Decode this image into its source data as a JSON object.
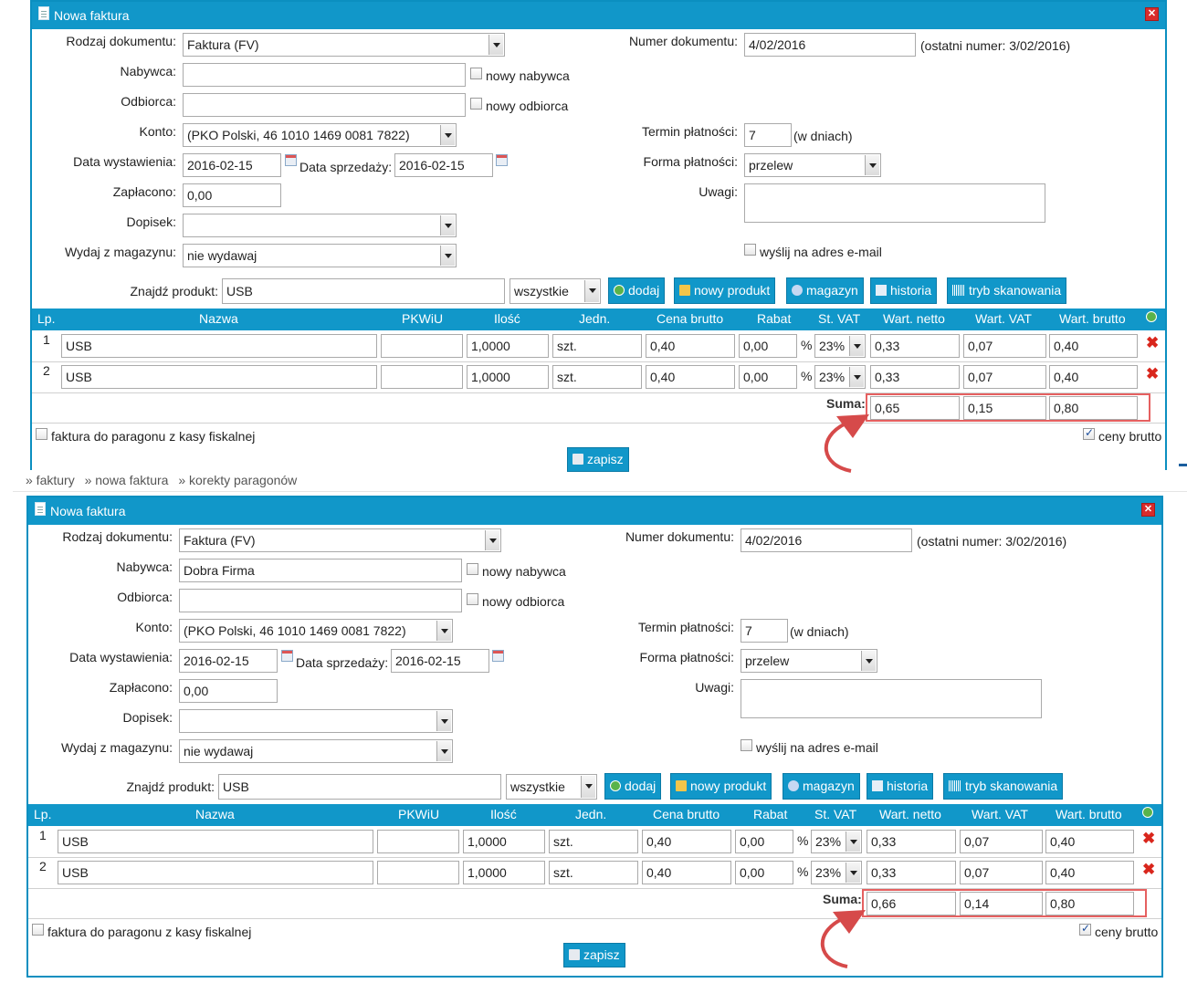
{
  "breadcrumb": [
    "» faktury",
    "» nowa faktura",
    "» korekty paragonów"
  ],
  "windows": [
    {
      "title": "Nowa faktura",
      "labels": {
        "doc_type": "Rodzaj dokumentu:",
        "buyer": "Nabywca:",
        "recipient": "Odbiorca:",
        "account": "Konto:",
        "issue_date": "Data wystawienia:",
        "sale_date": "Data sprzedaży:",
        "paid": "Zapłacono:",
        "note": "Dopisek:",
        "warehouse": "Wydaj z magazynu:",
        "doc_number": "Numer dokumentu:",
        "payment_term": "Termin płatności:",
        "payment_form": "Forma płatności:",
        "remarks": "Uwagi:",
        "find_product": "Znajdź produkt:"
      },
      "doc_type": "Faktura (FV)",
      "buyer": "",
      "new_buyer": "nowy nabywca",
      "recipient": "",
      "new_recipient": "nowy odbiorca",
      "account": "(PKO Polski, 46 1010 1469 0081 7822)",
      "issue_date": "2016-02-15",
      "sale_date": "2016-02-15",
      "paid": "0,00",
      "note": "",
      "warehouse": "nie wydawaj",
      "doc_number": "4/02/2016",
      "last_number": "(ostatni numer: 3/02/2016)",
      "payment_term": "7",
      "payment_term_unit": "(w dniach)",
      "payment_form": "przelew",
      "remarks": "",
      "send_email": "wyślij na adres e-mail",
      "search": "USB",
      "filter": "wszystkie",
      "buttons": {
        "add": "dodaj",
        "new_product": "nowy produkt",
        "warehouse": "magazyn",
        "history": "historia",
        "scan": "tryb skanowania",
        "save": "zapisz"
      },
      "columns": [
        "Lp.",
        "Nazwa",
        "PKWiU",
        "Ilość",
        "Jedn.",
        "Cena brutto",
        "Rabat",
        "St. VAT",
        "Wart. netto",
        "Wart. VAT",
        "Wart. brutto"
      ],
      "rows": [
        {
          "lp": "1",
          "name": "USB",
          "pkwiu": "",
          "qty": "1,0000",
          "unit": "szt.",
          "price": "0,40",
          "discount": "0,00",
          "pct": "%",
          "vat": "23%",
          "net": "0,33",
          "vat_val": "0,07",
          "gross": "0,40"
        },
        {
          "lp": "2",
          "name": "USB",
          "pkwiu": "",
          "qty": "1,0000",
          "unit": "szt.",
          "price": "0,40",
          "discount": "0,00",
          "pct": "%",
          "vat": "23%",
          "net": "0,33",
          "vat_val": "0,07",
          "gross": "0,40"
        }
      ],
      "sum_label": "Suma:",
      "sum": {
        "net": "0,65",
        "vat": "0,15",
        "gross": "0,80"
      },
      "receipt_invoice": "faktura do paragonu z kasy fiskalnej",
      "gross_prices": "ceny brutto"
    },
    {
      "title": "Nowa faktura",
      "labels": {
        "doc_type": "Rodzaj dokumentu:",
        "buyer": "Nabywca:",
        "recipient": "Odbiorca:",
        "account": "Konto:",
        "issue_date": "Data wystawienia:",
        "sale_date": "Data sprzedaży:",
        "paid": "Zapłacono:",
        "note": "Dopisek:",
        "warehouse": "Wydaj z magazynu:",
        "doc_number": "Numer dokumentu:",
        "payment_term": "Termin płatności:",
        "payment_form": "Forma płatności:",
        "remarks": "Uwagi:",
        "find_product": "Znajdź produkt:"
      },
      "doc_type": "Faktura (FV)",
      "buyer": "Dobra Firma",
      "new_buyer": "nowy nabywca",
      "recipient": "",
      "new_recipient": "nowy odbiorca",
      "account": "(PKO Polski, 46 1010 1469 0081 7822)",
      "issue_date": "2016-02-15",
      "sale_date": "2016-02-15",
      "paid": "0,00",
      "note": "",
      "warehouse": "nie wydawaj",
      "doc_number": "4/02/2016",
      "last_number": "(ostatni numer: 3/02/2016)",
      "payment_term": "7",
      "payment_term_unit": "(w dniach)",
      "payment_form": "przelew",
      "remarks": "",
      "send_email": "wyślij na adres e-mail",
      "search": "USB",
      "filter": "wszystkie",
      "buttons": {
        "add": "dodaj",
        "new_product": "nowy produkt",
        "warehouse": "magazyn",
        "history": "historia",
        "scan": "tryb skanowania",
        "save": "zapisz"
      },
      "columns": [
        "Lp.",
        "Nazwa",
        "PKWiU",
        "Ilość",
        "Jedn.",
        "Cena brutto",
        "Rabat",
        "St. VAT",
        "Wart. netto",
        "Wart. VAT",
        "Wart. brutto"
      ],
      "rows": [
        {
          "lp": "1",
          "name": "USB",
          "pkwiu": "",
          "qty": "1,0000",
          "unit": "szt.",
          "price": "0,40",
          "discount": "0,00",
          "pct": "%",
          "vat": "23%",
          "net": "0,33",
          "vat_val": "0,07",
          "gross": "0,40"
        },
        {
          "lp": "2",
          "name": "USB",
          "pkwiu": "",
          "qty": "1,0000",
          "unit": "szt.",
          "price": "0,40",
          "discount": "0,00",
          "pct": "%",
          "vat": "23%",
          "net": "0,33",
          "vat_val": "0,07",
          "gross": "0,40"
        }
      ],
      "sum_label": "Suma:",
      "sum": {
        "net": "0,66",
        "vat": "0,14",
        "gross": "0,80"
      },
      "receipt_invoice": "faktura do paragonu z kasy fiskalnej",
      "gross_prices": "ceny brutto"
    }
  ],
  "colors": {
    "header": "#1197c9",
    "highlight": "#e56060",
    "delete": "#d9261c"
  }
}
